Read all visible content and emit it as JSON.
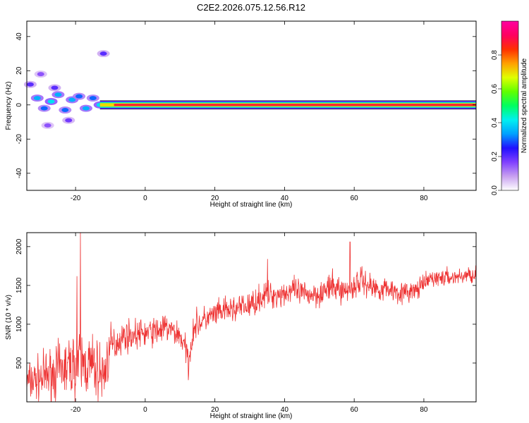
{
  "title": "C2E2.2026.075.12.56.R12",
  "chart_data": [
    {
      "type": "heatmap",
      "name": "spectrogram",
      "xlabel": "Height of straight line (km)",
      "ylabel": "Frequency (Hz)",
      "xlim": [
        -34,
        95
      ],
      "ylim": [
        -50,
        49
      ],
      "xticks": [
        -20,
        0,
        20,
        40,
        60,
        80
      ],
      "yticks": [
        -40,
        -20,
        0,
        20,
        40
      ],
      "ridge_frequency_hz": 0,
      "colorbar": {
        "label": "Normalized spectral amplitude",
        "range": [
          0,
          1
        ],
        "ticks": [
          "0.0",
          "0.2",
          "0.4",
          "0.6",
          "0.8"
        ],
        "colors": [
          "#ffffff",
          "#c8a0f0",
          "#8040ff",
          "#2010ff",
          "#00a0ff",
          "#00f0f0",
          "#00ff60",
          "#60ff00",
          "#e0ff00",
          "#ffa000",
          "#ff3000",
          "#ff0060",
          "#ff00a0"
        ]
      },
      "blobs": [
        {
          "x": -31,
          "y": 4,
          "a": 0.35
        },
        {
          "x": -29,
          "y": -2,
          "a": 0.3
        },
        {
          "x": -27,
          "y": 2,
          "a": 0.4
        },
        {
          "x": -25,
          "y": 6,
          "a": 0.35
        },
        {
          "x": -23,
          "y": -3,
          "a": 0.3
        },
        {
          "x": -21,
          "y": 3,
          "a": 0.35
        },
        {
          "x": -19,
          "y": 5,
          "a": 0.3
        },
        {
          "x": -17,
          "y": -2,
          "a": 0.35
        },
        {
          "x": -15,
          "y": 4,
          "a": 0.3
        },
        {
          "x": -13,
          "y": 0,
          "a": 0.4
        },
        {
          "x": -12,
          "y": 30,
          "a": 0.2
        },
        {
          "x": -30,
          "y": 18,
          "a": 0.15
        },
        {
          "x": -33,
          "y": 12,
          "a": 0.2
        },
        {
          "x": -22,
          "y": -9,
          "a": 0.18
        },
        {
          "x": -28,
          "y": -12,
          "a": 0.15
        },
        {
          "x": -26,
          "y": 10,
          "a": 0.2
        }
      ]
    },
    {
      "type": "line",
      "name": "snr",
      "xlabel": "Height of straight line (km)",
      "ylabel": "SNR (10 * v/v)",
      "xlim": [
        -34,
        95
      ],
      "ylim": [
        0,
        2180
      ],
      "xticks": [
        -20,
        0,
        20,
        40,
        60,
        80
      ],
      "yticks": [
        500,
        1000,
        1500,
        2000
      ],
      "color": "#ee3333",
      "trend": {
        "x": [
          -34,
          -30,
          -26,
          -22,
          -19,
          -17,
          -15,
          -12,
          -10,
          -6,
          -2,
          2,
          6,
          10,
          12.5,
          14,
          18,
          22,
          26,
          30,
          34,
          38,
          42,
          46,
          50,
          54,
          58,
          62,
          66,
          70,
          74,
          78,
          82,
          86,
          90,
          95
        ],
        "y": [
          250,
          300,
          380,
          450,
          500,
          480,
          450,
          330,
          700,
          850,
          870,
          900,
          950,
          860,
          560,
          980,
          1080,
          1160,
          1200,
          1240,
          1370,
          1380,
          1430,
          1380,
          1400,
          1480,
          1420,
          1570,
          1460,
          1460,
          1400,
          1440,
          1590,
          1600,
          1610,
          1650
        ]
      },
      "noise_amplitude": {
        "x": [
          -34,
          -26,
          -18,
          -12,
          -8,
          0,
          10,
          20,
          40,
          60,
          80,
          95
        ],
        "y": [
          200,
          260,
          330,
          300,
          150,
          140,
          140,
          130,
          130,
          140,
          90,
          80
        ]
      },
      "spikes": [
        {
          "x": -18.6,
          "y": 2180
        },
        {
          "x": -19.6,
          "y": 1620
        },
        {
          "x": 58.8,
          "y": 2060
        },
        {
          "x": 35.1,
          "y": 1840
        },
        {
          "x": 12.4,
          "y": 280
        }
      ],
      "samples": 1300,
      "seed": 7
    }
  ]
}
